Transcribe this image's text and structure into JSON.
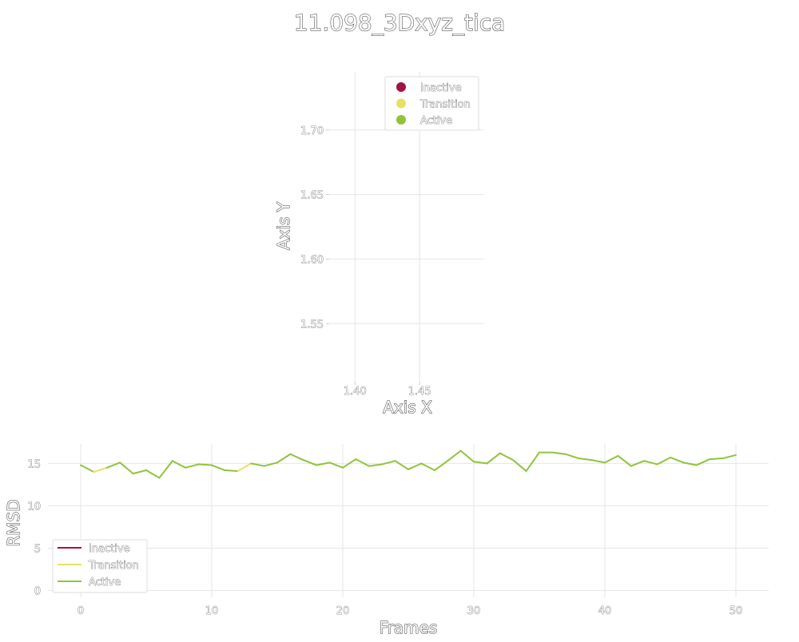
{
  "title": "11.098_3Dxyz_tica",
  "chart_data": [
    {
      "type": "scatter",
      "xlabel": "Axis X",
      "ylabel": "Axis Y",
      "xlim": [
        1.38,
        1.5
      ],
      "ylim": [
        1.505,
        1.745
      ],
      "xticks": [
        "1.40",
        "1.45"
      ],
      "xtick_values": [
        1.4,
        1.45
      ],
      "yticks": [
        "1.55",
        "1.60",
        "1.65",
        "1.70"
      ],
      "ytick_values": [
        1.55,
        1.6,
        1.65,
        1.7
      ],
      "grid": true,
      "legend": {
        "placement": "top-right",
        "entries": [
          {
            "label": "Inactive",
            "color": "#9e1442"
          },
          {
            "label": "Transition",
            "color": "#e8e066"
          },
          {
            "label": "Active",
            "color": "#8fc43b"
          }
        ]
      },
      "points": []
    },
    {
      "type": "line",
      "xlabel": "Frames",
      "ylabel": "RMSD",
      "xlim": [
        -2.5,
        52.5
      ],
      "ylim": [
        -0.8,
        17.3
      ],
      "xticks": [
        "0",
        "10",
        "20",
        "30",
        "40",
        "50"
      ],
      "xtick_values": [
        0,
        10,
        20,
        30,
        40,
        50
      ],
      "yticks": [
        "0",
        "5",
        "10",
        "15"
      ],
      "ytick_values": [
        0,
        5,
        10,
        15
      ],
      "grid": true,
      "legend": {
        "placement": "lower-left",
        "entries": [
          {
            "label": "Inactive",
            "color": "#9e1442"
          },
          {
            "label": "Transition",
            "color": "#e8e066"
          },
          {
            "label": "Active",
            "color": "#8fc43b"
          }
        ]
      },
      "x": [
        0,
        1,
        2,
        3,
        4,
        5,
        6,
        7,
        8,
        9,
        10,
        11,
        12,
        13,
        14,
        15,
        16,
        17,
        18,
        19,
        20,
        21,
        22,
        23,
        24,
        25,
        26,
        27,
        28,
        29,
        30,
        31,
        32,
        33,
        34,
        35,
        36,
        37,
        38,
        39,
        40,
        41,
        42,
        43,
        44,
        45,
        46,
        47,
        48,
        49,
        50
      ],
      "y": [
        14.8,
        14.0,
        14.5,
        15.1,
        13.8,
        14.2,
        13.3,
        15.3,
        14.5,
        14.9,
        14.8,
        14.2,
        14.1,
        15.0,
        14.7,
        15.1,
        16.1,
        15.4,
        14.8,
        15.1,
        14.5,
        15.5,
        14.7,
        14.9,
        15.3,
        14.3,
        15.0,
        14.2,
        15.3,
        16.5,
        15.2,
        15.0,
        16.2,
        15.4,
        14.1,
        16.3,
        16.3,
        16.1,
        15.6,
        15.4,
        15.1,
        15.9,
        14.7,
        15.3,
        14.9,
        15.7,
        15.1,
        14.8,
        15.5,
        15.6,
        16.0
      ],
      "segment_state": [
        "Active",
        "Transition",
        "Active",
        "Active",
        "Active",
        "Active",
        "Active",
        "Active",
        "Active",
        "Active",
        "Active",
        "Active",
        "Transition",
        "Active",
        "Active",
        "Active",
        "Active",
        "Active",
        "Active",
        "Active",
        "Active",
        "Active",
        "Active",
        "Active",
        "Active",
        "Active",
        "Active",
        "Active",
        "Active",
        "Active",
        "Active",
        "Active",
        "Active",
        "Active",
        "Active",
        "Active",
        "Active",
        "Active",
        "Active",
        "Active",
        "Active",
        "Active",
        "Active",
        "Active",
        "Active",
        "Active",
        "Active",
        "Active",
        "Active",
        "Active"
      ]
    }
  ]
}
